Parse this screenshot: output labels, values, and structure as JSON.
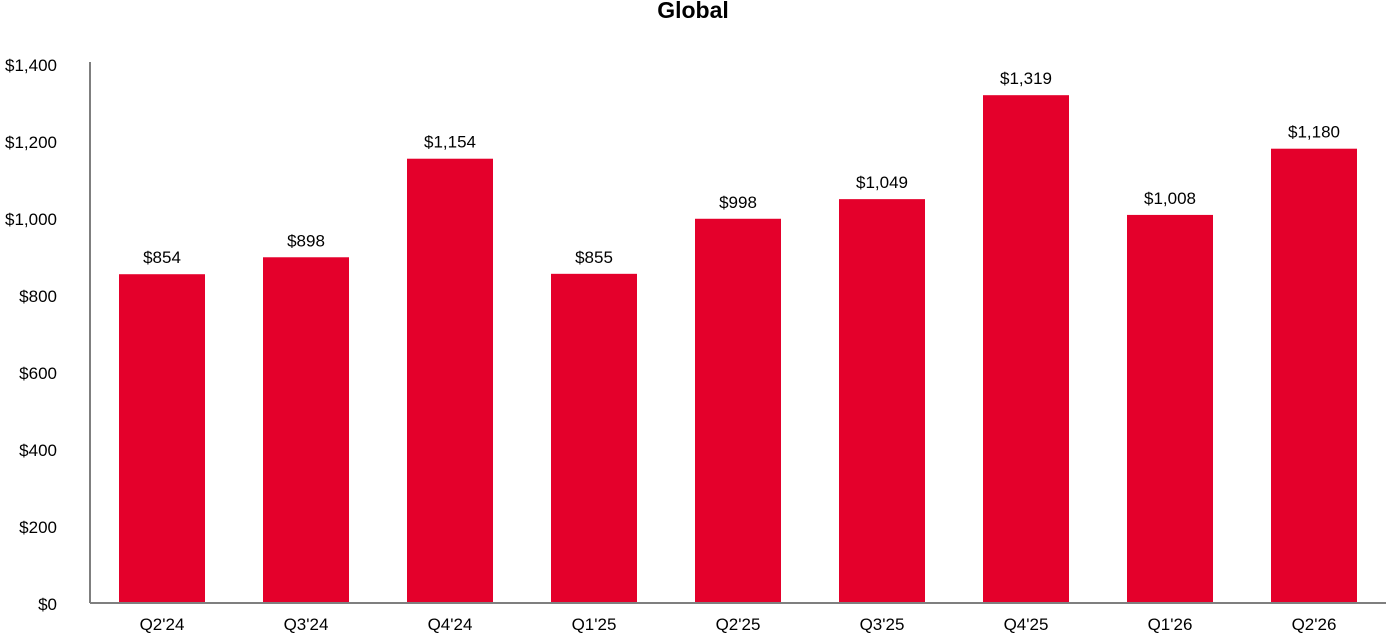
{
  "chart_data": {
    "type": "bar",
    "title": "Global",
    "xlabel": "",
    "ylabel": "",
    "categories": [
      "Q2'24",
      "Q3'24",
      "Q4'24",
      "Q1'25",
      "Q2'25",
      "Q3'25",
      "Q4'25",
      "Q1'26",
      "Q2'26"
    ],
    "values": [
      854,
      898,
      1154,
      855,
      998,
      1049,
      1319,
      1008,
      1180
    ],
    "data_labels": [
      "$854",
      "$898",
      "$1,154",
      "$855",
      "$998",
      "$1,049",
      "$1,319",
      "$1,008",
      "$1,180"
    ],
    "ylim": [
      0,
      1400
    ],
    "yticks": [
      0,
      200,
      400,
      600,
      800,
      1000,
      1200,
      1400
    ],
    "ytick_labels": [
      "$0",
      "$200",
      "$400",
      "$600",
      "$800",
      "$1,000",
      "$1,200",
      "$1,400"
    ],
    "grid": false,
    "legend": "none",
    "bar_color": "#E4002B",
    "axis_color": "#7F7F7F"
  }
}
